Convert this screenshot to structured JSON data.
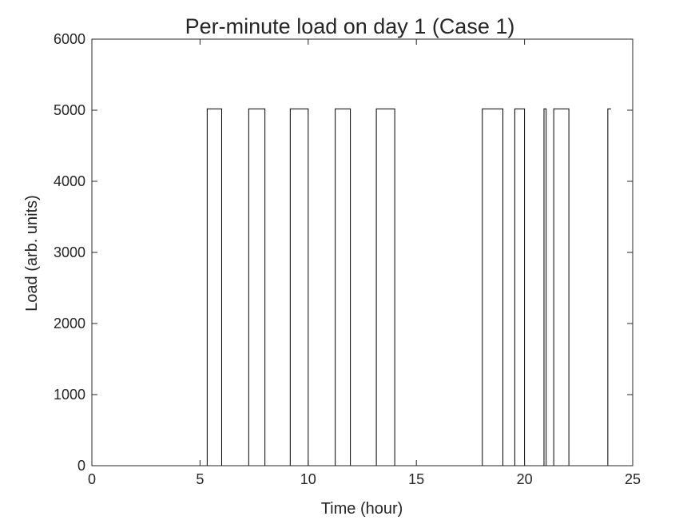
{
  "chart_data": {
    "type": "line",
    "title": "Per-minute load on day 1 (Case 1)",
    "xlabel": "Time (hour)",
    "ylabel": "Load (arb. units)",
    "xlim": [
      0,
      25
    ],
    "ylim": [
      0,
      6000
    ],
    "xticks": [
      0,
      5,
      10,
      15,
      20,
      25
    ],
    "yticks": [
      0,
      1000,
      2000,
      3000,
      4000,
      5000,
      6000
    ],
    "grid": false,
    "legend": "none",
    "step": true,
    "colors": {
      "line": "#000000",
      "axes": "#262626"
    },
    "series": [
      {
        "x": [
          0,
          5.33,
          5.33,
          6.0,
          6.0,
          7.25,
          7.25,
          8.0,
          8.0,
          9.17,
          9.17,
          10.0,
          10.0,
          11.25,
          11.25,
          11.95,
          11.95,
          13.15,
          13.15,
          14.0,
          14.0,
          18.05,
          18.05,
          19.0,
          19.0,
          19.55,
          19.55,
          20.0,
          20.0,
          20.9,
          20.9,
          21.0,
          21.0,
          21.35,
          21.35,
          22.05,
          22.05,
          23.85,
          23.85,
          24.0
        ],
        "y": [
          0,
          0,
          5020,
          5020,
          0,
          0,
          5020,
          5020,
          0,
          0,
          5020,
          5020,
          0,
          0,
          5020,
          5020,
          0,
          0,
          5020,
          5020,
          0,
          0,
          5020,
          5020,
          0,
          0,
          5020,
          5020,
          0,
          0,
          5020,
          5020,
          0,
          0,
          5020,
          5020,
          0,
          0,
          5020,
          5020
        ]
      }
    ]
  }
}
